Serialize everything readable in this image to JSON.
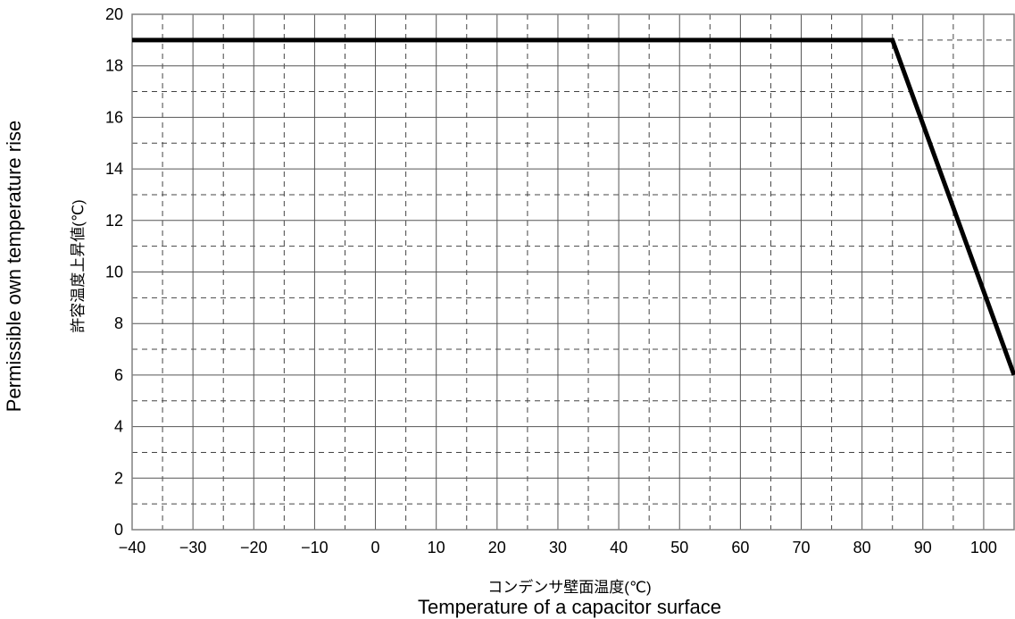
{
  "chart_data": {
    "type": "line",
    "title": "",
    "xlabel_ja": "コンデンサ壁面温度(℃)",
    "xlabel_en": "Temperature of a capacitor surface",
    "ylabel_ja": "許容温度上昇値(℃)",
    "ylabel_en": "Permissible own temperature rise",
    "xlim": [
      -40,
      105
    ],
    "ylim": [
      0,
      20
    ],
    "x_ticks": [
      -40,
      -30,
      -20,
      -10,
      0,
      10,
      20,
      30,
      40,
      50,
      60,
      70,
      80,
      90,
      100
    ],
    "x_tick_labels": [
      "−40",
      "−30",
      "−20",
      "−10",
      "0",
      "10",
      "20",
      "30",
      "40",
      "50",
      "60",
      "70",
      "80",
      "90",
      "100"
    ],
    "y_ticks": [
      0,
      2,
      4,
      6,
      8,
      10,
      12,
      14,
      16,
      18,
      20
    ],
    "y_tick_labels": [
      "0",
      "2",
      "4",
      "6",
      "8",
      "10",
      "12",
      "14",
      "16",
      "18",
      "20"
    ],
    "grid": {
      "major": "solid",
      "minor": "dashed",
      "minor_step_x": 5,
      "minor_step_y": 1
    },
    "legend": "none",
    "series": [
      {
        "color": "#000000",
        "x": [
          -40,
          85,
          105
        ],
        "y": [
          19,
          19,
          6
        ]
      }
    ]
  }
}
